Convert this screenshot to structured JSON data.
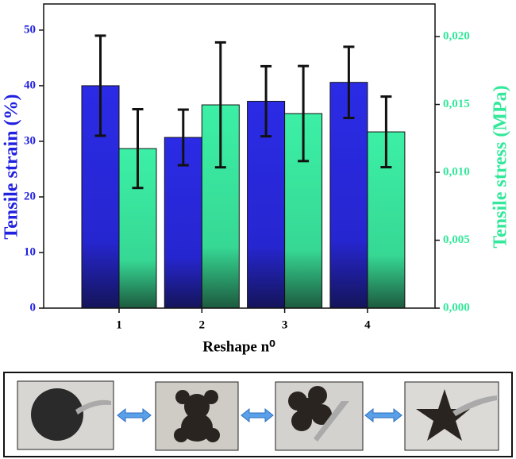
{
  "chart_data": {
    "type": "bar",
    "x_label": "Reshape n⁰",
    "y_label": "Tensile strain (%)",
    "y2_label": "Tensile stress (MPa)",
    "categories": [
      "1",
      "2",
      "3",
      "4"
    ],
    "series": [
      {
        "color": "#2b2be6",
        "values": [
          40.0,
          30.7,
          37.2,
          40.6
        ],
        "errors": [
          9.0,
          5.0,
          6.3,
          6.4
        ]
      },
      {
        "color": "#3cf0a6",
        "axis": "y2",
        "values": [
          0.01175,
          0.01497,
          0.01433,
          0.01298
        ],
        "errors": [
          0.0029,
          0.0046,
          0.0035,
          0.0026
        ]
      }
    ],
    "ylim": [
      0,
      54.7
    ],
    "yticks": [
      0,
      10,
      20,
      30,
      40,
      50
    ],
    "y2lim": [
      0,
      0.0224
    ],
    "y2ticks": [
      {
        "value": 0,
        "label": "0,000"
      },
      {
        "value": 0.005,
        "label": "0,005"
      },
      {
        "value": 0.01,
        "label": "0,010"
      },
      {
        "value": 0.015,
        "label": "0,015"
      },
      {
        "value": 0.02,
        "label": "0,020"
      }
    ],
    "y_color": "#2020e0",
    "y2_color": "#33e89a"
  }
}
